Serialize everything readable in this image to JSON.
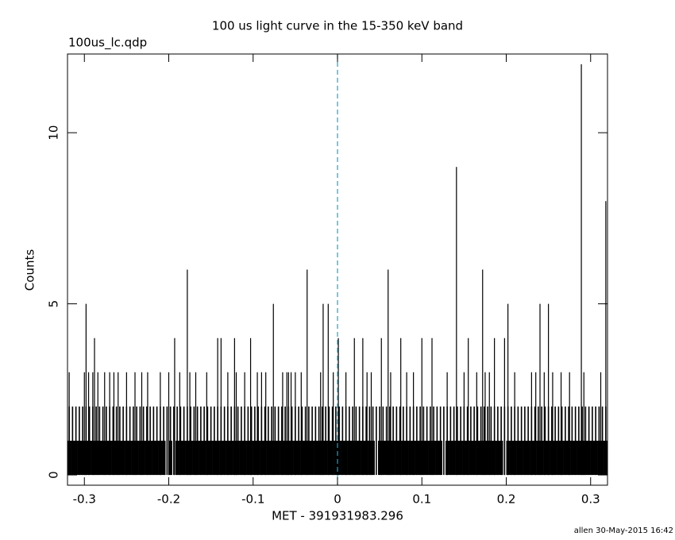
{
  "chart_data": {
    "type": "counts",
    "title": "100 us light curve in the 15-350 keV band",
    "subtitle": "100us_lc.qdp",
    "x_label": "MET - 391931983.296",
    "y_label": "Counts",
    "footer": "allen 30-May-2015 16:42",
    "xlim": [
      -0.32,
      0.32
    ],
    "ylim": [
      -0.3,
      12.3
    ],
    "xticks": [
      -0.3,
      -0.2,
      -0.1,
      0,
      0.1,
      0.2,
      0.3
    ],
    "yticks": [
      0,
      5,
      10
    ],
    "vlines": [
      0
    ],
    "vline_color": "#1aa3c4",
    "x": [
      -0.32,
      -0.316,
      -0.312,
      -0.308,
      -0.304,
      -0.3,
      -0.296,
      -0.292,
      -0.288,
      -0.284,
      -0.28,
      -0.276,
      -0.272,
      -0.268,
      -0.264,
      -0.26,
      -0.256,
      -0.252,
      -0.248,
      -0.244,
      -0.24,
      -0.236,
      -0.232,
      -0.228,
      -0.224,
      -0.22,
      -0.216,
      -0.212,
      -0.208,
      -0.204,
      -0.2,
      -0.196,
      -0.192,
      -0.188,
      -0.184,
      -0.18,
      -0.176,
      -0.172,
      -0.168,
      -0.164,
      -0.16,
      -0.156,
      -0.152,
      -0.148,
      -0.144,
      -0.14,
      -0.136,
      -0.132,
      -0.128,
      -0.124,
      -0.12,
      -0.116,
      -0.112,
      -0.108,
      -0.104,
      -0.1,
      -0.096,
      -0.092,
      -0.088,
      -0.084,
      -0.08,
      -0.076,
      -0.072,
      -0.068,
      -0.064,
      -0.06,
      -0.056,
      -0.052,
      -0.048,
      -0.044,
      -0.04,
      -0.036,
      -0.032,
      -0.028,
      -0.024,
      -0.02,
      -0.016,
      -0.012,
      -0.008,
      -0.004,
      0,
      0.004,
      0.008,
      0.012,
      0.016,
      0.02,
      0.024,
      0.028,
      0.032,
      0.036,
      0.04,
      0.044,
      0.048,
      0.052,
      0.056,
      0.06,
      0.064,
      0.068,
      0.072,
      0.076,
      0.08,
      0.084,
      0.088,
      0.092,
      0.096,
      0.1,
      0.104,
      0.108,
      0.112,
      0.116,
      0.12,
      0.124,
      0.128,
      0.132,
      0.136,
      0.14,
      0.144,
      0.148,
      0.152,
      0.156,
      0.16,
      0.164,
      0.168,
      0.172,
      0.176,
      0.18,
      0.184,
      0.188,
      0.192,
      0.196,
      0.2,
      0.204,
      0.208,
      0.212,
      0.216,
      0.22,
      0.224,
      0.228,
      0.232,
      0.236,
      0.24,
      0.244,
      0.248,
      0.252,
      0.256,
      0.26,
      0.264,
      0.268,
      0.272,
      0.276,
      0.28,
      0.284,
      0.288,
      0.292,
      0.296,
      0.3,
      0.304,
      0.308,
      0.312,
      0.316
    ],
    "series": [
      {
        "color": "#000000",
        "values": [
          1,
          1,
          1,
          1,
          1,
          1,
          1,
          1,
          1,
          1,
          1,
          1,
          1,
          1,
          1,
          1,
          1,
          1,
          1,
          1,
          1,
          1,
          1,
          1,
          1,
          1,
          1,
          1,
          1,
          0,
          1,
          0,
          1,
          1,
          1,
          1,
          1,
          1,
          1,
          1,
          1,
          1,
          1,
          1,
          1,
          1,
          1,
          1,
          1,
          1,
          1,
          1,
          1,
          1,
          1,
          1,
          1,
          1,
          1,
          1,
          1,
          1,
          1,
          1,
          1,
          1,
          1,
          1,
          1,
          1,
          1,
          1,
          1,
          1,
          1,
          1,
          1,
          1,
          1,
          1,
          1,
          1,
          1,
          1,
          1,
          1,
          1,
          1,
          1,
          1,
          1,
          0,
          1,
          1,
          1,
          1,
          1,
          1,
          1,
          1,
          1,
          1,
          1,
          1,
          1,
          1,
          1,
          1,
          1,
          1,
          1,
          0,
          1,
          1,
          1,
          1,
          1,
          1,
          1,
          1,
          1,
          1,
          1,
          1,
          1,
          1,
          1,
          1,
          1,
          0,
          1,
          1,
          1,
          1,
          1,
          1,
          1,
          1,
          1,
          1,
          1,
          1,
          1,
          1,
          1,
          1,
          1,
          1,
          1,
          1,
          1,
          1,
          1,
          1,
          1,
          1,
          1,
          1,
          1,
          1
        ]
      },
      {
        "color": "#000000",
        "values": [
          2,
          2,
          2,
          2,
          2,
          2,
          2,
          2,
          2,
          2,
          2,
          2,
          2,
          2,
          2,
          2,
          2,
          2,
          2,
          2,
          2,
          2,
          2,
          2,
          2,
          2,
          2,
          2,
          2,
          2,
          2,
          2,
          2,
          2,
          2,
          2,
          2,
          2,
          2,
          2,
          2,
          2,
          2,
          2,
          2,
          2,
          2,
          2,
          2,
          2,
          2,
          2,
          2,
          2,
          2,
          2,
          2,
          2,
          2,
          2,
          2,
          2,
          2,
          2,
          2,
          2,
          2,
          2,
          2,
          2,
          2,
          2,
          2,
          2,
          2,
          2,
          2,
          2,
          2,
          2,
          2,
          2,
          2,
          2,
          2,
          2,
          2,
          2,
          2,
          2,
          2,
          2,
          2,
          2,
          2,
          2,
          2,
          2,
          2,
          2,
          2,
          2,
          2,
          2,
          2,
          2,
          2,
          2,
          2,
          2,
          2,
          2,
          2,
          2,
          2,
          2,
          2,
          2,
          2,
          2,
          2,
          2,
          2,
          2,
          2,
          2,
          2,
          2,
          2,
          2,
          2,
          2,
          2,
          2,
          2,
          2,
          2,
          2,
          2,
          2,
          2,
          2,
          2,
          2,
          2,
          2,
          2,
          2,
          2,
          2,
          2,
          2,
          2,
          2,
          2,
          2,
          2,
          2,
          2,
          2
        ]
      },
      {
        "color": "#000000",
        "x": [
          -0.318,
          -0.3,
          -0.298,
          -0.295,
          -0.29,
          -0.288,
          -0.284,
          -0.276,
          -0.27,
          -0.265,
          -0.26,
          -0.25,
          -0.24,
          -0.232,
          -0.225,
          -0.21,
          -0.2,
          -0.193,
          -0.187,
          -0.178,
          -0.175,
          -0.168,
          -0.155,
          -0.142,
          -0.138,
          -0.13,
          -0.122,
          -0.12,
          -0.11,
          -0.103,
          -0.095,
          -0.09,
          -0.085,
          -0.076,
          -0.065,
          -0.06,
          -0.058,
          -0.055,
          -0.05,
          -0.043,
          -0.036,
          -0.02,
          -0.017,
          -0.011,
          -0.005,
          0.001,
          0.01,
          0.02,
          0.03,
          0.035,
          0.04,
          0.052,
          0.06,
          0.063,
          0.075,
          0.082,
          0.09,
          0.1,
          0.112,
          0.13,
          0.141,
          0.15,
          0.155,
          0.165,
          0.172,
          0.175,
          0.18,
          0.186,
          0.198,
          0.202,
          0.21,
          0.23,
          0.235,
          0.24,
          0.245,
          0.25,
          0.255,
          0.265,
          0.275,
          0.289,
          0.292,
          0.312,
          0.318
        ],
        "values": [
          3,
          3,
          5,
          3,
          3,
          4,
          3,
          3,
          3,
          3,
          3,
          3,
          3,
          3,
          3,
          3,
          3,
          4,
          3,
          6,
          3,
          3,
          3,
          4,
          4,
          3,
          4,
          3,
          3,
          4,
          3,
          3,
          3,
          5,
          3,
          3,
          3,
          3,
          3,
          3,
          6,
          3,
          5,
          5,
          3,
          4,
          3,
          4,
          4,
          3,
          3,
          4,
          6,
          3,
          4,
          3,
          3,
          4,
          4,
          3,
          9,
          3,
          4,
          3,
          6,
          3,
          3,
          4,
          4,
          5,
          3,
          3,
          3,
          5,
          3,
          5,
          3,
          3,
          3,
          12,
          3,
          3,
          8
        ]
      }
    ]
  }
}
